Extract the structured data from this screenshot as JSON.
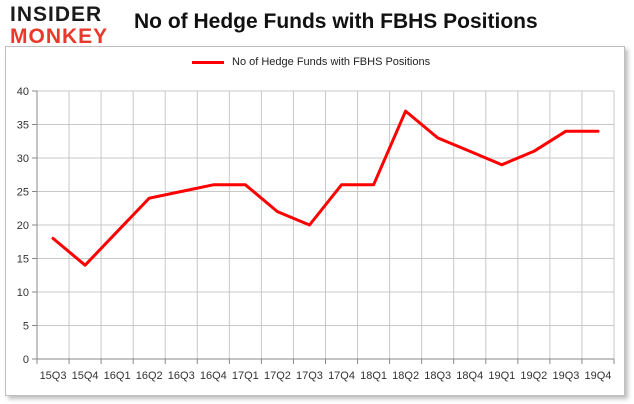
{
  "brand": {
    "line1": "INSIDER",
    "line2": "MONKEY",
    "accent": "#e8392c"
  },
  "chart_data": {
    "type": "line",
    "title": "No of Hedge Funds with FBHS Positions",
    "categories": [
      "15Q3",
      "15Q4",
      "16Q1",
      "16Q2",
      "16Q3",
      "16Q4",
      "17Q1",
      "17Q2",
      "17Q3",
      "17Q4",
      "18Q1",
      "18Q2",
      "18Q3",
      "18Q4",
      "19Q1",
      "19Q2",
      "19Q3",
      "19Q4"
    ],
    "series": [
      {
        "name": "No of Hedge Funds with FBHS Positions",
        "color": "#ff0000",
        "values": [
          18,
          14,
          19,
          24,
          25,
          26,
          26,
          22,
          20,
          26,
          26,
          37,
          33,
          31,
          29,
          31,
          34,
          34
        ]
      }
    ],
    "ylim": [
      0,
      40
    ],
    "yticks": [
      0,
      5,
      10,
      15,
      20,
      25,
      30,
      35,
      40
    ],
    "grid": true,
    "legend": "top"
  }
}
